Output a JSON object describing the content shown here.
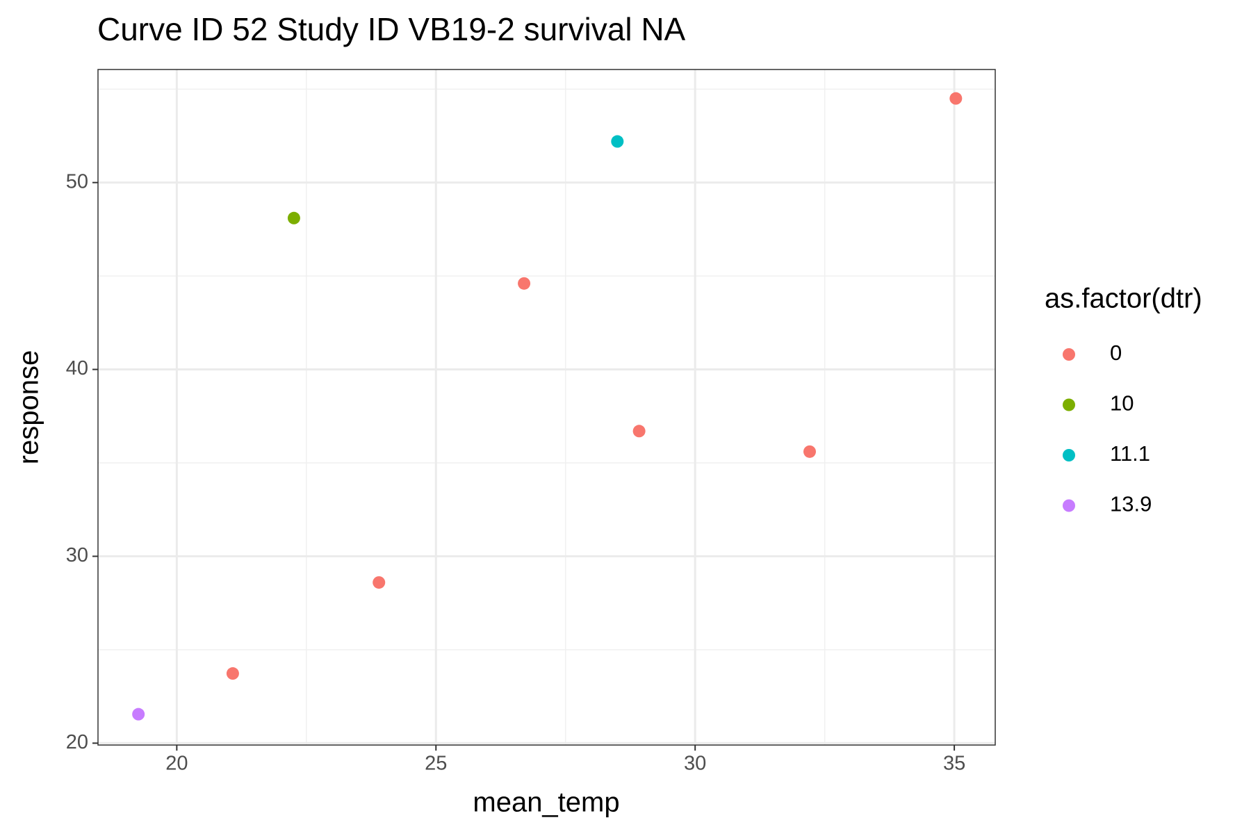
{
  "chart_data": {
    "type": "scatter",
    "title": "Curve ID 52 Study ID VB19-2 survival NA",
    "x_label": "mean_temp",
    "y_label": "response",
    "legend_title": "as.factor(dtr)",
    "xlim": [
      18.48,
      35.79
    ],
    "ylim": [
      19.9,
      56.05
    ],
    "xticks": [
      20,
      25,
      30,
      35
    ],
    "yticks": [
      20,
      30,
      40,
      50
    ],
    "xminor": [
      22.5,
      27.5,
      32.5
    ],
    "yminor": [
      25,
      35,
      45,
      55
    ],
    "grid": true,
    "legend": "right",
    "series": [
      {
        "name": "0",
        "color": "#f8766d",
        "x": [
          21.08,
          23.9,
          26.7,
          28.92,
          32.21,
          35.03
        ],
        "values": [
          23.73,
          28.6,
          44.6,
          36.7,
          35.6,
          54.5
        ]
      },
      {
        "name": "10",
        "color": "#7cae00",
        "x": [
          22.26
        ],
        "values": [
          48.1
        ]
      },
      {
        "name": "11.1",
        "color": "#00bfc4",
        "x": [
          28.5
        ],
        "values": [
          52.2
        ]
      },
      {
        "name": "13.9",
        "color": "#c77cff",
        "x": [
          19.26
        ],
        "values": [
          21.55
        ]
      }
    ]
  }
}
